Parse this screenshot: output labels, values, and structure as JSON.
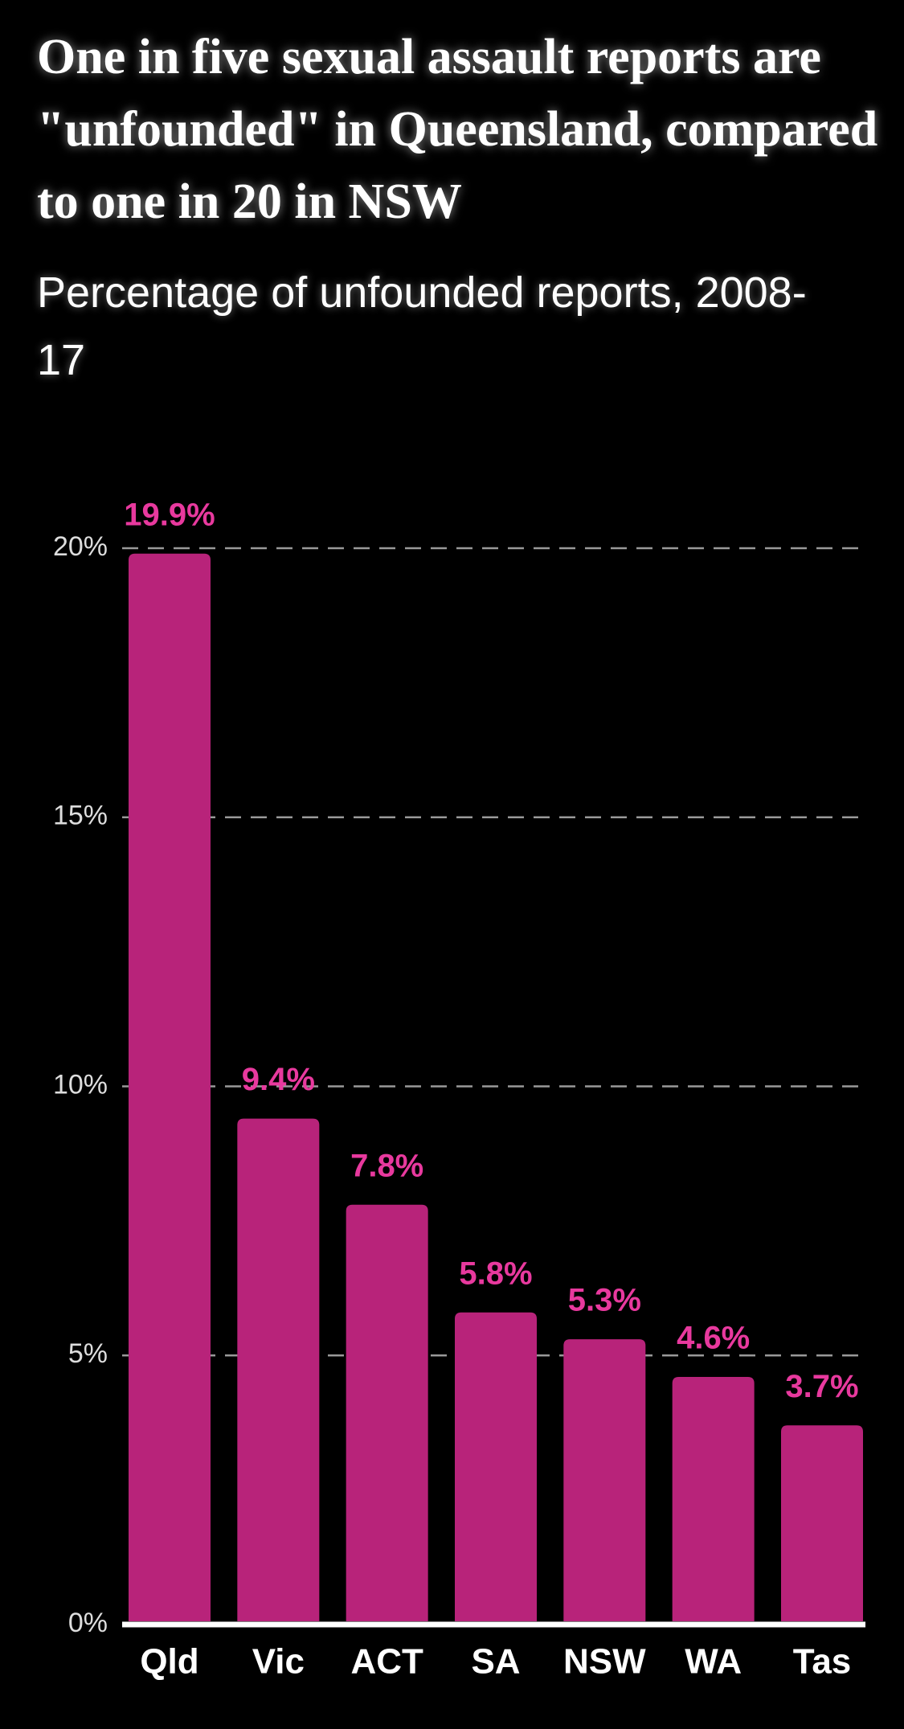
{
  "chart_data": {
    "type": "bar",
    "title": "One in five sexual assault reports are \"unfounded\" in Queensland, compared to one in 20 in NSW",
    "subtitle": "Percentage of unfounded reports, 2008-17",
    "categories": [
      "Qld",
      "Vic",
      "ACT",
      "SA",
      "NSW",
      "WA",
      "Tas"
    ],
    "values": [
      19.9,
      9.4,
      7.8,
      5.8,
      5.3,
      4.6,
      3.7
    ],
    "value_labels": [
      "19.9%",
      "9.4%",
      "7.8%",
      "5.8%",
      "5.3%",
      "4.6%",
      "3.7%"
    ],
    "color": "#b8237a",
    "label_color": "#e8399e",
    "ylim": [
      0,
      20
    ],
    "yticks": [
      {
        "value": 0,
        "label": "0%"
      },
      {
        "value": 5,
        "label": "5%"
      },
      {
        "value": 10,
        "label": "10%"
      },
      {
        "value": 15,
        "label": "15%"
      },
      {
        "value": 20,
        "label": "20%"
      }
    ],
    "grid": true
  }
}
